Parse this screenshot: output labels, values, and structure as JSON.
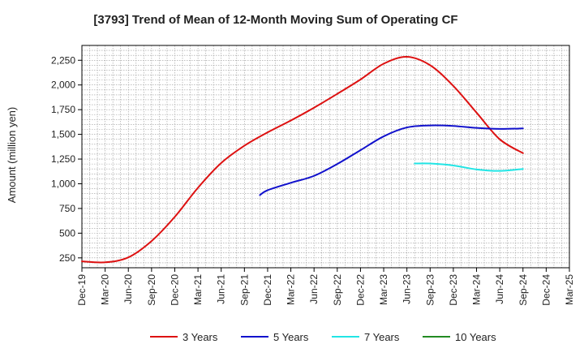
{
  "chart_data": {
    "type": "line",
    "title": "[3793]  Trend of Mean of 12-Month Moving Sum of Operating CF",
    "xlabel": "",
    "ylabel": "Amount (million yen)",
    "ylim": [
      150,
      2400
    ],
    "yticks": [
      250,
      500,
      750,
      1000,
      1250,
      1500,
      1750,
      2000,
      2250
    ],
    "ytick_labels": [
      "250",
      "500",
      "750",
      "1,000",
      "1,250",
      "1,500",
      "1,750",
      "2,000",
      "2,250"
    ],
    "x_start": "Dec-19",
    "x_ticks": [
      "Dec-19",
      "Mar-20",
      "Jun-20",
      "Sep-20",
      "Dec-20",
      "Mar-21",
      "Jun-21",
      "Sep-21",
      "Dec-21",
      "Mar-22",
      "Jun-22",
      "Sep-22",
      "Dec-22",
      "Mar-23",
      "Jun-23",
      "Sep-23",
      "Dec-23",
      "Mar-24",
      "Jun-24",
      "Sep-24",
      "Dec-24",
      "Mar-25"
    ],
    "x_end_label": "Mar-25",
    "grid": true,
    "legend_position": "bottom",
    "series": [
      {
        "name": "3 Years",
        "color": "#dd1111",
        "points": [
          [
            "Dec-19",
            215
          ],
          [
            "Mar-20",
            205
          ],
          [
            "Jun-20",
            255
          ],
          [
            "Sep-20",
            420
          ],
          [
            "Dec-20",
            665
          ],
          [
            "Mar-21",
            960
          ],
          [
            "Jun-21",
            1210
          ],
          [
            "Sep-21",
            1385
          ],
          [
            "Dec-21",
            1520
          ],
          [
            "Mar-22",
            1640
          ],
          [
            "Jun-22",
            1770
          ],
          [
            "Sep-22",
            1910
          ],
          [
            "Dec-22",
            2055
          ],
          [
            "Mar-23",
            2215
          ],
          [
            "Jun-23",
            2285
          ],
          [
            "Sep-23",
            2200
          ],
          [
            "Dec-23",
            1990
          ],
          [
            "Mar-24",
            1720
          ],
          [
            "Jun-24",
            1450
          ],
          [
            "Sep-24",
            1310
          ]
        ]
      },
      {
        "name": "5 Years",
        "color": "#1111cc",
        "points": [
          [
            "Nov-21",
            885
          ],
          [
            "Dec-21",
            935
          ],
          [
            "Mar-22",
            1010
          ],
          [
            "Jun-22",
            1080
          ],
          [
            "Sep-22",
            1200
          ],
          [
            "Dec-22",
            1340
          ],
          [
            "Mar-23",
            1480
          ],
          [
            "Jun-23",
            1570
          ],
          [
            "Sep-23",
            1590
          ],
          [
            "Dec-23",
            1585
          ],
          [
            "Mar-24",
            1565
          ],
          [
            "Jun-24",
            1555
          ],
          [
            "Sep-24",
            1560
          ]
        ]
      },
      {
        "name": "7 Years",
        "color": "#22e5e5",
        "points": [
          [
            "Jul-23",
            1205
          ],
          [
            "Sep-23",
            1205
          ],
          [
            "Dec-23",
            1185
          ],
          [
            "Mar-24",
            1145
          ],
          [
            "Jun-24",
            1130
          ],
          [
            "Sep-24",
            1150
          ]
        ]
      },
      {
        "name": "10 Years",
        "color": "#228b22",
        "points": []
      }
    ]
  }
}
